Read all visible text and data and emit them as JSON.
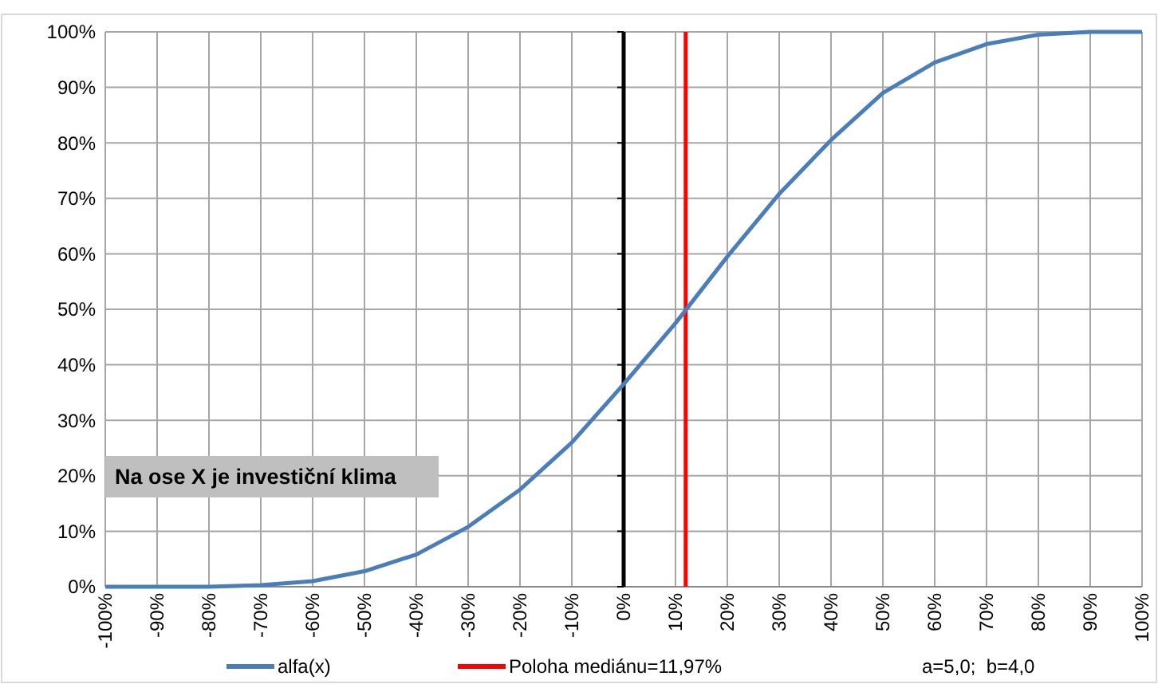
{
  "chart_data": {
    "type": "line",
    "x": [
      -100,
      -90,
      -80,
      -70,
      -60,
      -50,
      -40,
      -30,
      -20,
      -10,
      0,
      10,
      20,
      30,
      40,
      50,
      60,
      70,
      80,
      90,
      100
    ],
    "series": [
      {
        "name": "alfa(x)",
        "color": "#4a7ebb",
        "values": [
          0,
          0,
          0,
          0.3,
          1,
          2.8,
          5.8,
          10.8,
          17.5,
          26,
          36.5,
          47.5,
          59.5,
          70.8,
          80.5,
          89,
          94.5,
          97.8,
          99.5,
          100,
          100
        ]
      }
    ],
    "xlim": [
      -100,
      100
    ],
    "ylim": [
      0,
      100
    ],
    "xticks": [
      {
        "value": -100,
        "label": "-100%"
      },
      {
        "value": -90,
        "label": "-90%"
      },
      {
        "value": -80,
        "label": "-80%"
      },
      {
        "value": -70,
        "label": "-70%"
      },
      {
        "value": -60,
        "label": "-60%"
      },
      {
        "value": -50,
        "label": "-50%"
      },
      {
        "value": -40,
        "label": "-40%"
      },
      {
        "value": -30,
        "label": "-30%"
      },
      {
        "value": -20,
        "label": "-20%"
      },
      {
        "value": -10,
        "label": "-10%"
      },
      {
        "value": 0,
        "label": "0%"
      },
      {
        "value": 10,
        "label": "10%"
      },
      {
        "value": 20,
        "label": "20%"
      },
      {
        "value": 30,
        "label": "30%"
      },
      {
        "value": 40,
        "label": "40%"
      },
      {
        "value": 50,
        "label": "50%"
      },
      {
        "value": 60,
        "label": "60%"
      },
      {
        "value": 70,
        "label": "70%"
      },
      {
        "value": 80,
        "label": "80%"
      },
      {
        "value": 90,
        "label": "90%"
      },
      {
        "value": 100,
        "label": "100%"
      }
    ],
    "yticks": [
      {
        "value": 0,
        "label": "0%"
      },
      {
        "value": 10,
        "label": "10%"
      },
      {
        "value": 20,
        "label": "20%"
      },
      {
        "value": 30,
        "label": "30%"
      },
      {
        "value": 40,
        "label": "40%"
      },
      {
        "value": 50,
        "label": "50%"
      },
      {
        "value": 60,
        "label": "60%"
      },
      {
        "value": 70,
        "label": "70%"
      },
      {
        "value": 80,
        "label": "80%"
      },
      {
        "value": 90,
        "label": "90%"
      },
      {
        "value": 100,
        "label": "100%"
      }
    ],
    "ref_lines": [
      {
        "axis": "x",
        "value": 11.97,
        "label": "Poloha mediánu=11,97%",
        "color": "#ff0000"
      }
    ],
    "annotations": [
      "Na ose X je investiční klima",
      "a=5,0;  b=4,0"
    ],
    "grid": true,
    "legend": "bottom",
    "marker": "none",
    "line_style": "solid"
  }
}
